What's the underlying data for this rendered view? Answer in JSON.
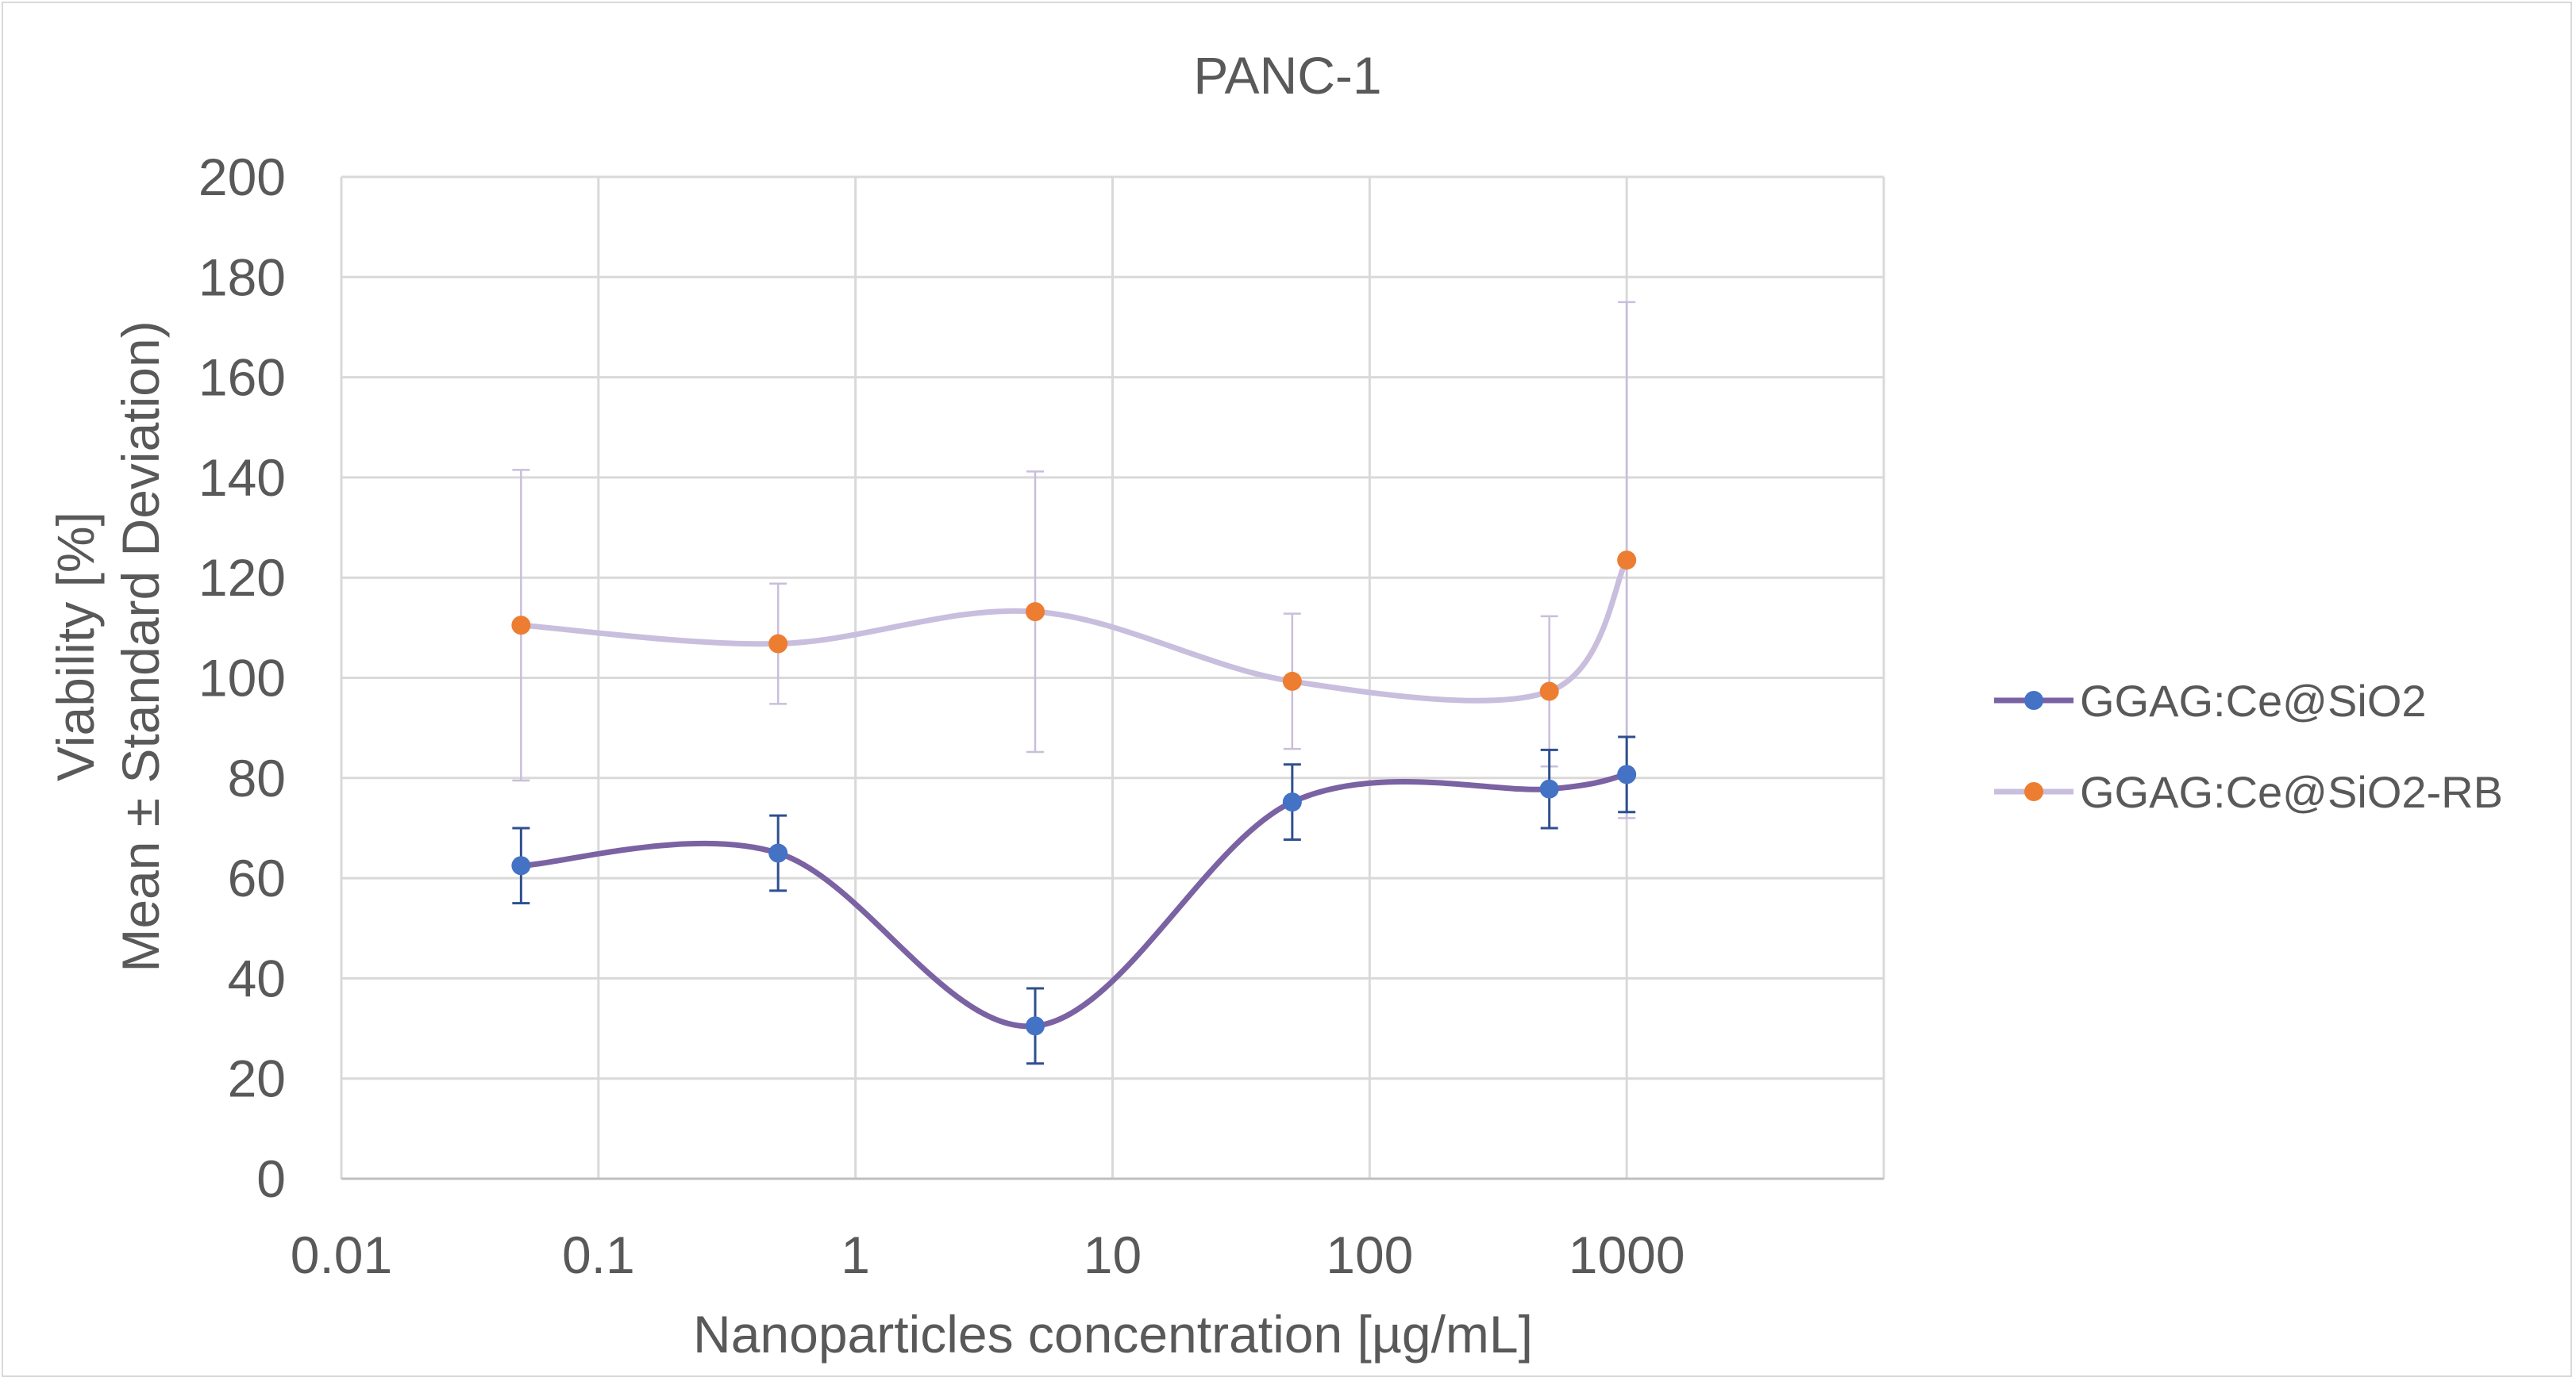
{
  "chart_data": {
    "type": "line",
    "title": "PANC-1",
    "xlabel": "Nanoparticles concentration [µg/mL]",
    "ylabel_line1": "Viability [%]",
    "ylabel_line2": "Mean ± Standard Deviation)",
    "x_scale": "log",
    "xlim": [
      0.01,
      10000
    ],
    "ylim": [
      0,
      200
    ],
    "x_ticks": [
      0.01,
      0.1,
      1,
      10,
      100,
      1000
    ],
    "x_tick_labels": [
      "0.01",
      "0.1",
      "1",
      "10",
      "100",
      "1000"
    ],
    "y_ticks": [
      0,
      20,
      40,
      60,
      80,
      100,
      120,
      140,
      160,
      180,
      200
    ],
    "y_tick_labels": [
      "0",
      "20",
      "40",
      "60",
      "80",
      "100",
      "120",
      "140",
      "160",
      "180",
      "200"
    ],
    "grid": true,
    "legend_position": "right",
    "series": [
      {
        "name": "GGAG:Ce@SiO2",
        "line_color": "#7b62a3",
        "marker_color": "#4472c4",
        "error_color": "#2f4f8f",
        "x": [
          0.05,
          0.5,
          5,
          50,
          500,
          1000
        ],
        "y": [
          62.5,
          65,
          30.5,
          75.2,
          77.8,
          80.7
        ],
        "err": [
          7.5,
          7.5,
          7.5,
          7.5,
          7.8,
          7.5
        ]
      },
      {
        "name": "GGAG:Ce@SiO2-RB",
        "line_color": "#c9bedd",
        "marker_color": "#ed7d31",
        "error_color": "#c9bedd",
        "x": [
          0.05,
          0.5,
          5,
          50,
          500,
          1000
        ],
        "y": [
          110.5,
          106.8,
          113.2,
          99.3,
          97.3,
          123.5
        ],
        "err": [
          31,
          12,
          28,
          13.5,
          15,
          51.5
        ]
      }
    ]
  }
}
